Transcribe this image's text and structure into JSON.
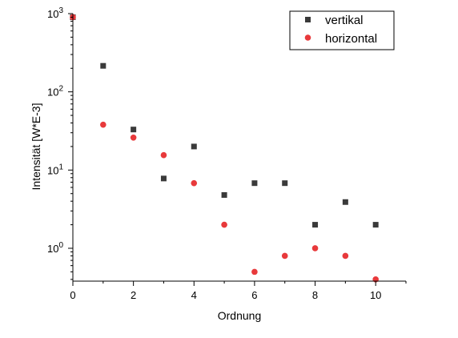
{
  "chart_data": {
    "type": "scatter",
    "xlabel": "Ordnung",
    "ylabel": "Intensität [W*E-3]",
    "xlim": [
      0,
      11
    ],
    "ylim_log10": [
      -0.42,
      3
    ],
    "yscale": "log",
    "grid": false,
    "legend_position": "top-right",
    "x_ticks": [
      0,
      2,
      4,
      6,
      8,
      10
    ],
    "y_ticks": [
      {
        "base": "10",
        "exp": "0",
        "value": 1
      },
      {
        "base": "10",
        "exp": "1",
        "value": 10
      },
      {
        "base": "10",
        "exp": "2",
        "value": 100
      },
      {
        "base": "10",
        "exp": "3",
        "value": 1000
      }
    ],
    "series": [
      {
        "name": "vertikal",
        "marker": "square",
        "color": "#3a3a3a",
        "points": [
          {
            "x": 0,
            "y": 900
          },
          {
            "x": 1,
            "y": 215
          },
          {
            "x": 2,
            "y": 33
          },
          {
            "x": 3,
            "y": 7.8
          },
          {
            "x": 4,
            "y": 20
          },
          {
            "x": 5,
            "y": 4.8
          },
          {
            "x": 6,
            "y": 6.8
          },
          {
            "x": 7,
            "y": 6.8
          },
          {
            "x": 8,
            "y": 2.0
          },
          {
            "x": 9,
            "y": 3.9
          },
          {
            "x": 10,
            "y": 2.0
          }
        ]
      },
      {
        "name": "horizontal",
        "marker": "circle",
        "color": "#e8393b",
        "points": [
          {
            "x": 0,
            "y": 900
          },
          {
            "x": 1,
            "y": 38
          },
          {
            "x": 2,
            "y": 26
          },
          {
            "x": 3,
            "y": 15.5
          },
          {
            "x": 4,
            "y": 6.8
          },
          {
            "x": 5,
            "y": 2.0
          },
          {
            "x": 6,
            "y": 0.5
          },
          {
            "x": 7,
            "y": 0.8
          },
          {
            "x": 8,
            "y": 1.0
          },
          {
            "x": 9,
            "y": 0.8
          },
          {
            "x": 10,
            "y": 0.4
          }
        ]
      }
    ]
  }
}
